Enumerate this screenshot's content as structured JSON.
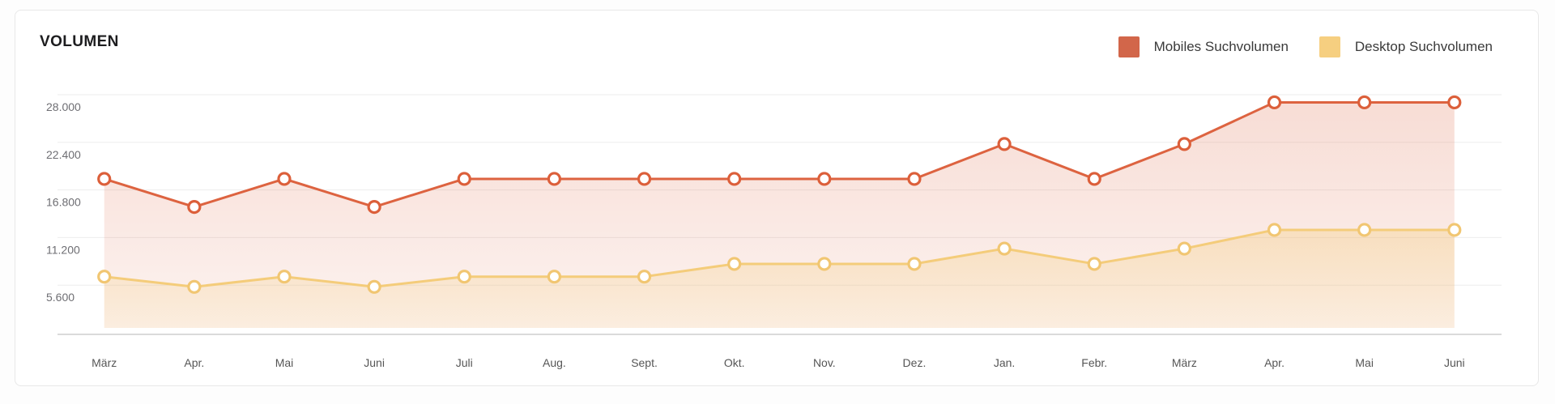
{
  "card": {
    "title": "VOLUMEN"
  },
  "legend": [
    {
      "label": "Mobiles Suchvolumen",
      "color": "#d2664a"
    },
    {
      "label": "Desktop Suchvolumen",
      "color": "#f6cf80"
    }
  ],
  "chart_data": {
    "type": "line",
    "title": "VOLUMEN",
    "categories": [
      "März",
      "Apr.",
      "Mai",
      "Juni",
      "Juli",
      "Aug.",
      "Sept.",
      "Okt.",
      "Nov.",
      "Dez.",
      "Jan.",
      "Febr.",
      "März",
      "Apr.",
      "Mai",
      "Juni"
    ],
    "series": [
      {
        "name": "Mobiles Suchvolumen",
        "line_color": "#dd6340",
        "marker_stroke": "#dc5f3a",
        "fill_top": "rgba(221,99,64,0.22)",
        "fill_bottom": "rgba(221,99,64,0.08)",
        "values": [
          18100,
          14800,
          18100,
          14800,
          18100,
          18100,
          18100,
          18100,
          18100,
          18100,
          22200,
          18100,
          22200,
          27100,
          27100,
          27100
        ]
      },
      {
        "name": "Desktop Suchvolumen",
        "line_color": "#f4cc7a",
        "marker_stroke": "#f1c672",
        "fill_top": "rgba(244,204,122,0.35)",
        "fill_bottom": "rgba(244,204,122,0.14)",
        "values": [
          6600,
          5400,
          6600,
          5400,
          6600,
          6600,
          6600,
          8100,
          8100,
          8100,
          9900,
          8100,
          9900,
          12100,
          12100,
          12100
        ]
      }
    ],
    "y_ticks": [
      28000,
      22400,
      16800,
      11200,
      5600
    ],
    "y_tick_labels": [
      "28.000",
      "22.400",
      "16.800",
      "11.200",
      "5.600"
    ],
    "ylim": [
      0,
      30500
    ],
    "grid": true,
    "gridline_color": "#ededed",
    "baseline_color": "#cdcdcd",
    "markers": "open-circle",
    "legend_position": "top-right"
  }
}
